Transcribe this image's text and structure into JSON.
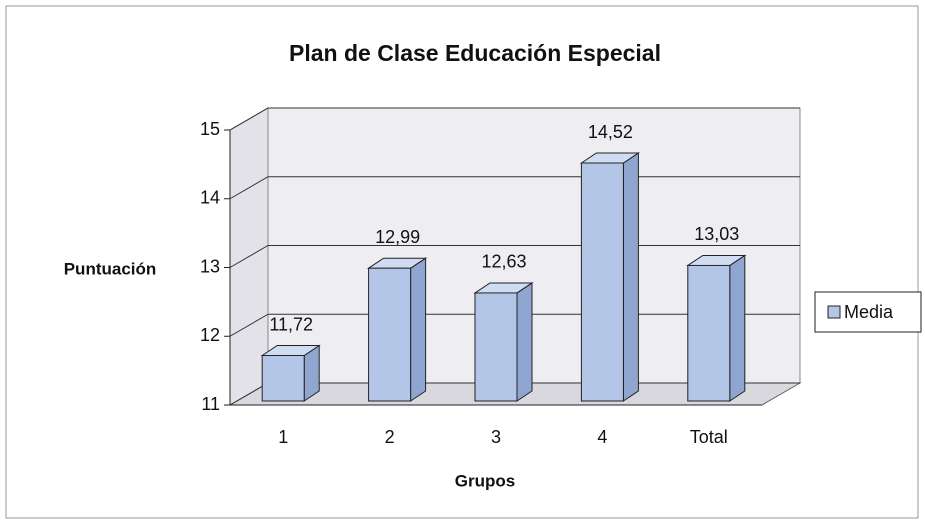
{
  "chart_data": {
    "type": "bar3d",
    "title": "Plan de Clase Educación Especial",
    "xlabel": "Grupos",
    "ylabel": "Puntuación",
    "categories": [
      "1",
      "2",
      "3",
      "4",
      "Total"
    ],
    "series": [
      {
        "name": "Media",
        "color": "#b4c6e7",
        "values": [
          11.72,
          12.99,
          12.63,
          14.52,
          13.03
        ],
        "value_labels": [
          "11,72",
          "12,99",
          "12,63",
          "14,52",
          "13,03"
        ]
      }
    ],
    "ylim": [
      11,
      15
    ],
    "yticks": [
      11,
      12,
      13,
      14,
      15
    ],
    "grid": true,
    "legend": "right"
  }
}
